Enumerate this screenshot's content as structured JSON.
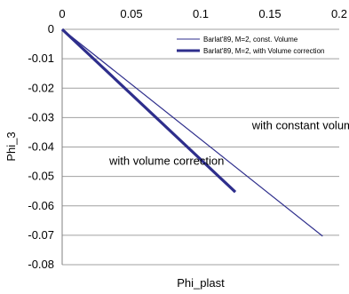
{
  "chart_data": {
    "type": "line",
    "xlabel": "Phi_plast",
    "ylabel": "Phi_3",
    "xlim": [
      0,
      0.2
    ],
    "ylim": [
      -0.08,
      0
    ],
    "x_ticks": [
      "0",
      "0.05",
      "0.1",
      "0.15",
      "0.2"
    ],
    "y_ticks": [
      "0",
      "-0.01",
      "-0.02",
      "-0.03",
      "-0.04",
      "-0.05",
      "-0.06",
      "-0.07",
      "-0.08"
    ],
    "x_axis_position": "top",
    "grid": "horizontal",
    "legend_position": "top-right",
    "series": [
      {
        "name": "Barlat'89, M=2, const. Volume",
        "color": "#2e2e8c",
        "line_weight": "thin",
        "points": [
          [
            0,
            0
          ],
          [
            0.188,
            -0.0703
          ]
        ]
      },
      {
        "name": "Barlat'89, M=2, with Volume correction",
        "color": "#2e2e8c",
        "line_weight": "thick",
        "points": [
          [
            0,
            0
          ],
          [
            0.125,
            -0.0553
          ]
        ]
      }
    ],
    "annotations": [
      {
        "text": "with constant volume",
        "x": 0.137,
        "y": -0.034
      },
      {
        "text": "with volume correction",
        "x": 0.034,
        "y": -0.046
      }
    ]
  }
}
